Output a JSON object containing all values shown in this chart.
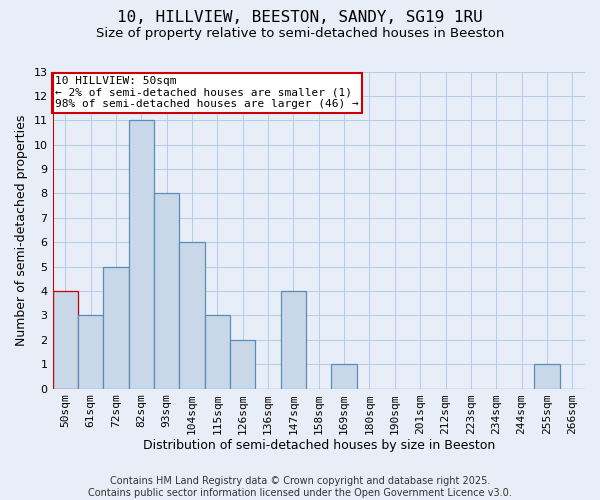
{
  "title": "10, HILLVIEW, BEESTON, SANDY, SG19 1RU",
  "subtitle": "Size of property relative to semi-detached houses in Beeston",
  "xlabel": "Distribution of semi-detached houses by size in Beeston",
  "ylabel": "Number of semi-detached properties",
  "categories": [
    "50sqm",
    "61sqm",
    "72sqm",
    "82sqm",
    "93sqm",
    "104sqm",
    "115sqm",
    "126sqm",
    "136sqm",
    "147sqm",
    "158sqm",
    "169sqm",
    "180sqm",
    "190sqm",
    "201sqm",
    "212sqm",
    "223sqm",
    "234sqm",
    "244sqm",
    "255sqm",
    "266sqm"
  ],
  "values": [
    4,
    3,
    5,
    11,
    8,
    6,
    3,
    2,
    0,
    4,
    0,
    1,
    0,
    0,
    0,
    0,
    0,
    0,
    0,
    1,
    0
  ],
  "bar_color": "#c8d8e8",
  "bar_edge_color": "#5b8db8",
  "highlight_bar_index": 0,
  "highlight_bar_edge_color": "#cc0000",
  "annotation_text": "10 HILLVIEW: 50sqm\n← 2% of semi-detached houses are smaller (1)\n98% of semi-detached houses are larger (46) →",
  "annotation_box_color": "white",
  "annotation_box_edge_color": "#cc0000",
  "vline_color": "#cc0000",
  "ylim": [
    0,
    13
  ],
  "yticks": [
    0,
    1,
    2,
    3,
    4,
    5,
    6,
    7,
    8,
    9,
    10,
    11,
    12,
    13
  ],
  "grid_color": "#aec6e8",
  "background_color": "#e8eef8",
  "footer_text": "Contains HM Land Registry data © Crown copyright and database right 2025.\nContains public sector information licensed under the Open Government Licence v3.0.",
  "title_fontsize": 11.5,
  "subtitle_fontsize": 9.5,
  "axis_label_fontsize": 9,
  "tick_fontsize": 8,
  "footer_fontsize": 7,
  "annotation_fontsize": 8
}
